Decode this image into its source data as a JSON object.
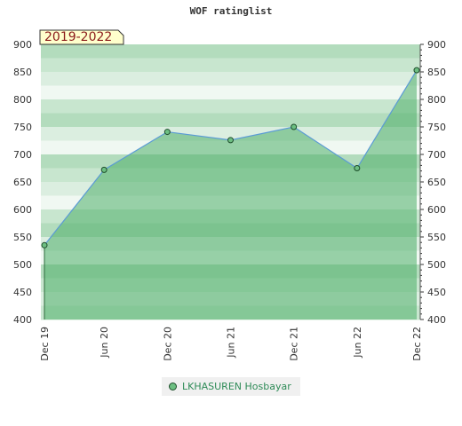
{
  "chart_data": {
    "type": "area",
    "title": "WOF ratinglist",
    "badge": "2019-2022",
    "x": [
      "Dec 19",
      "Jun 20",
      "Dec 20",
      "Jun 21",
      "Dec 21",
      "Jun 22",
      "Dec 22"
    ],
    "series": [
      {
        "name": "LKHASUREN Hosbayar",
        "values": [
          535,
          672,
          741,
          726,
          750,
          675,
          853
        ]
      }
    ],
    "ylim": [
      400,
      900
    ],
    "yticks": [
      400,
      450,
      500,
      550,
      600,
      650,
      700,
      750,
      800,
      850,
      900
    ],
    "grid": true,
    "legend": "bottom-center",
    "colors": {
      "line": "#5b9bd5",
      "marker": "#6dbf82",
      "legend_text": "#2e8b57",
      "badge_bg": "#ffffcc",
      "badge_text": "#8b1a1a"
    }
  }
}
